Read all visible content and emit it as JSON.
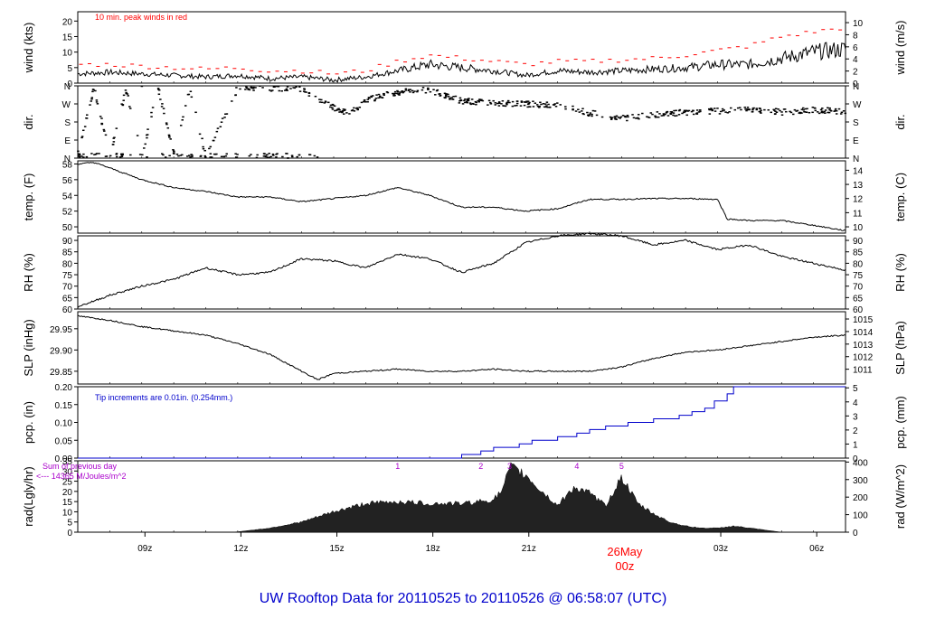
{
  "footer": {
    "title": "UW Rooftop Data for 20110525  to  20110526 @ 06:58:07  (UTC)",
    "date_label": "26May",
    "date_sub": "00z"
  },
  "colors": {
    "trace": "#000000",
    "peak": "#ff0000",
    "precip": "#0000cc",
    "rad_label": "#aa00cc",
    "title": "#0000cc",
    "date": "#ff0000"
  },
  "chart_data": [
    {
      "id": "wind",
      "type": "line",
      "ylabel": "wind (kts)",
      "ylabel_right": "wind (m/s)",
      "ylim": [
        0,
        23
      ],
      "yticks": [
        0,
        5,
        10,
        15,
        20
      ],
      "ylim_right": [
        0,
        11.8
      ],
      "yticks_right": [
        0,
        2,
        4,
        6,
        8,
        10
      ],
      "annotation": "10 min. peak winds in red",
      "series": [
        {
          "x": [
            0,
            1,
            2,
            3,
            4,
            5,
            6,
            7,
            8,
            9,
            10,
            11,
            12,
            13,
            14,
            15,
            16,
            17,
            18,
            19,
            20,
            21,
            22,
            23,
            24
          ],
          "values": [
            3,
            3.5,
            3,
            2.5,
            2,
            2.5,
            1.5,
            2,
            1,
            2,
            4,
            6,
            5,
            4,
            2.5,
            4,
            3.5,
            4,
            4.5,
            5,
            6,
            6,
            8,
            10,
            11
          ]
        },
        {
          "x": [
            0,
            1,
            2,
            3,
            4,
            5,
            6,
            7,
            8,
            9,
            10,
            11,
            12,
            13,
            14,
            15,
            16,
            17,
            18,
            19,
            20,
            21,
            22,
            23,
            24
          ],
          "values": [
            6,
            6,
            5.5,
            5,
            4.5,
            5,
            4,
            4,
            3,
            4,
            7,
            9,
            8,
            7,
            6,
            7,
            7,
            7.5,
            8,
            9,
            10.5,
            12,
            15,
            16.5,
            18
          ]
        }
      ]
    },
    {
      "id": "dir",
      "type": "scatter",
      "ylabel": "dir.",
      "ylabel_right": "dir.",
      "yticks_labels": [
        "N",
        "E",
        "S",
        "W",
        "N"
      ],
      "ylim": [
        0,
        360
      ],
      "series": [
        {
          "x": [
            0,
            0.5,
            1,
            1.5,
            2,
            2.5,
            3,
            3.5,
            4,
            5,
            6,
            7,
            8,
            8.5,
            9,
            9.5,
            10,
            11,
            12,
            13,
            14,
            15,
            16,
            17,
            18,
            19,
            20,
            21,
            22,
            23,
            24
          ],
          "values": [
            20,
            350,
            15,
            345,
            10,
            355,
            20,
            350,
            5,
            355,
            350,
            345,
            250,
            220,
            290,
            310,
            330,
            340,
            285,
            275,
            270,
            265,
            225,
            200,
            215,
            230,
            235,
            245,
            230,
            240,
            235
          ]
        }
      ]
    },
    {
      "id": "temp",
      "type": "line",
      "ylabel": "temp. (F)",
      "ylabel_right": "temp. (C)",
      "ylim": [
        49.2,
        58.4
      ],
      "yticks": [
        50,
        52,
        54,
        56,
        58
      ],
      "yticks_right": [
        10,
        11,
        12,
        13,
        14
      ],
      "series": [
        {
          "x": [
            0,
            0.5,
            1,
            2,
            3,
            4,
            5,
            6,
            7,
            8,
            9,
            10,
            11,
            12,
            13,
            14,
            15,
            16,
            17,
            18,
            19,
            20,
            20.3,
            21,
            22,
            23,
            24
          ],
          "values": [
            58,
            58.2,
            57.5,
            56,
            55,
            54.5,
            53.8,
            53.8,
            53.2,
            53.6,
            54,
            55,
            54,
            52.5,
            52.5,
            52,
            52.3,
            53.5,
            53.5,
            53.6,
            53.6,
            53.5,
            51,
            50.8,
            50.8,
            50.2,
            49.5
          ]
        }
      ]
    },
    {
      "id": "rh",
      "type": "line",
      "ylabel": "RH (%)",
      "ylabel_right": "RH (%)",
      "ylim": [
        60,
        92
      ],
      "yticks": [
        60,
        65,
        70,
        75,
        80,
        85,
        90
      ],
      "series": [
        {
          "x": [
            0,
            1,
            2,
            3,
            4,
            5,
            6,
            7,
            8,
            9,
            10,
            11,
            12,
            13,
            14,
            15,
            16,
            17,
            18,
            19,
            20,
            21,
            22,
            23,
            24
          ],
          "values": [
            61,
            66,
            70,
            73,
            78,
            75,
            76,
            82,
            81,
            78,
            84,
            82,
            76,
            80,
            89,
            92,
            93,
            92,
            88,
            90,
            86,
            88,
            83,
            80,
            77
          ]
        }
      ]
    },
    {
      "id": "slp",
      "type": "line",
      "ylabel": "SLP (inHg)",
      "ylabel_right": "SLP (hPa)",
      "ylim": [
        29.82,
        29.99
      ],
      "yticks": [
        29.85,
        29.9,
        29.95
      ],
      "yticks_right": [
        1011,
        1012,
        1013,
        1014,
        1015
      ],
      "series": [
        {
          "x": [
            0,
            1,
            2,
            3,
            4,
            5,
            6,
            7,
            7.5,
            8,
            9,
            10,
            11,
            12,
            13,
            14,
            15,
            16,
            17,
            18,
            19,
            20,
            21,
            22,
            23,
            24
          ],
          "values": [
            29.98,
            29.97,
            29.955,
            29.945,
            29.935,
            29.915,
            29.89,
            29.85,
            29.83,
            29.845,
            29.85,
            29.855,
            29.85,
            29.85,
            29.855,
            29.85,
            29.85,
            29.85,
            29.86,
            29.88,
            29.895,
            29.9,
            29.91,
            29.92,
            29.93,
            29.935
          ]
        }
      ]
    },
    {
      "id": "pcp",
      "type": "line",
      "ylabel": "pcp. (in)",
      "ylabel_right": "pcp. (mm)",
      "ylim": [
        0,
        0.2
      ],
      "yticks": [
        0,
        0.05,
        0.1,
        0.15,
        0.2
      ],
      "yticks_right": [
        0,
        1,
        2,
        3,
        4,
        5
      ],
      "annotation": "Tip increments are 0.01in. (0.254mm.)",
      "series": [
        {
          "x": [
            0,
            11.5,
            12,
            12.6,
            13,
            13.8,
            14.2,
            15,
            15.6,
            16,
            16.5,
            17.2,
            18,
            18.8,
            19.2,
            19.6,
            19.9,
            20.3,
            20.5,
            21,
            24
          ],
          "values": [
            0,
            0,
            0.01,
            0.02,
            0.03,
            0.04,
            0.05,
            0.06,
            0.07,
            0.08,
            0.09,
            0.1,
            0.11,
            0.12,
            0.13,
            0.14,
            0.16,
            0.18,
            0.2,
            0.2,
            0.2
          ]
        }
      ]
    },
    {
      "id": "rad",
      "type": "area",
      "ylabel": "rad(Lgly/hr)",
      "ylabel_right": "rad (W/m^2)",
      "ylim": [
        0,
        35
      ],
      "yticks": [
        0,
        5,
        10,
        15,
        20,
        25,
        30,
        35
      ],
      "yticks_right": [
        0,
        100,
        200,
        300,
        400
      ],
      "annotation_line1": "Sum of previous day",
      "annotation_line2": "<--- 14365 M/Joules/m^2",
      "markers": [
        "1",
        "2",
        "3",
        "4",
        "5"
      ],
      "series": [
        {
          "x": [
            0,
            4.8,
            5,
            6,
            7,
            8,
            9,
            10,
            11,
            12,
            13,
            13.3,
            13.5,
            14,
            14.5,
            15,
            15.5,
            16,
            16.5,
            17,
            17.5,
            18,
            18.5,
            19,
            19.5,
            20,
            20.5,
            21,
            21.5,
            22,
            22.5,
            23,
            24
          ],
          "values": [
            0,
            0,
            0.2,
            2,
            5,
            10,
            14,
            15,
            14,
            14,
            16,
            21,
            32,
            28,
            20,
            13,
            22,
            19,
            13,
            27,
            14,
            9,
            5,
            3,
            2,
            2,
            3,
            2,
            1,
            0,
            0,
            0,
            0
          ]
        }
      ]
    }
  ],
  "x_axis": {
    "ticks": [
      "09z",
      "12z",
      "15z",
      "18z",
      "21z",
      "03z",
      "06z"
    ]
  }
}
